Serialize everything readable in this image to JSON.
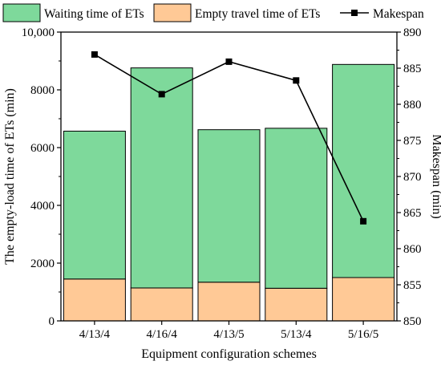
{
  "chart_data": {
    "type": "bar",
    "categories": [
      "4/13/4",
      "4/16/4",
      "4/13/5",
      "5/13/4",
      "5/16/5"
    ],
    "series": [
      {
        "name": "Empty travel time of ETs",
        "kind": "bar",
        "axis": "left",
        "stack": 0,
        "color": "#ffc996",
        "values": [
          1450,
          1140,
          1340,
          1130,
          1500
        ]
      },
      {
        "name": "Waiting time of ETs",
        "kind": "bar",
        "axis": "left",
        "stack": 1,
        "color": "#7ed99b",
        "values": [
          5120,
          7620,
          5280,
          5540,
          7380
        ]
      },
      {
        "name": "Makespan",
        "kind": "line",
        "axis": "right",
        "color": "#000000",
        "marker": "square",
        "values": [
          886.9,
          881.4,
          885.9,
          883.3,
          863.8
        ]
      }
    ],
    "xlabel": "Equipment configuration schemes",
    "ylabel": "The empty-load time of  ETs (min)",
    "y2label": "Makespan (min)",
    "ylim": [
      0,
      10000
    ],
    "y2lim": [
      850,
      890
    ],
    "yticks": [
      "0",
      "2000",
      "4000",
      "6000",
      "8000",
      "10,000"
    ],
    "y2ticks": [
      "850",
      "855",
      "860",
      "865",
      "870",
      "875",
      "880",
      "885",
      "890"
    ],
    "legend": {
      "placement": "top",
      "order": [
        "Waiting time of ETs",
        "Empty travel time of ETs",
        "Makespan"
      ]
    },
    "grid": false
  }
}
